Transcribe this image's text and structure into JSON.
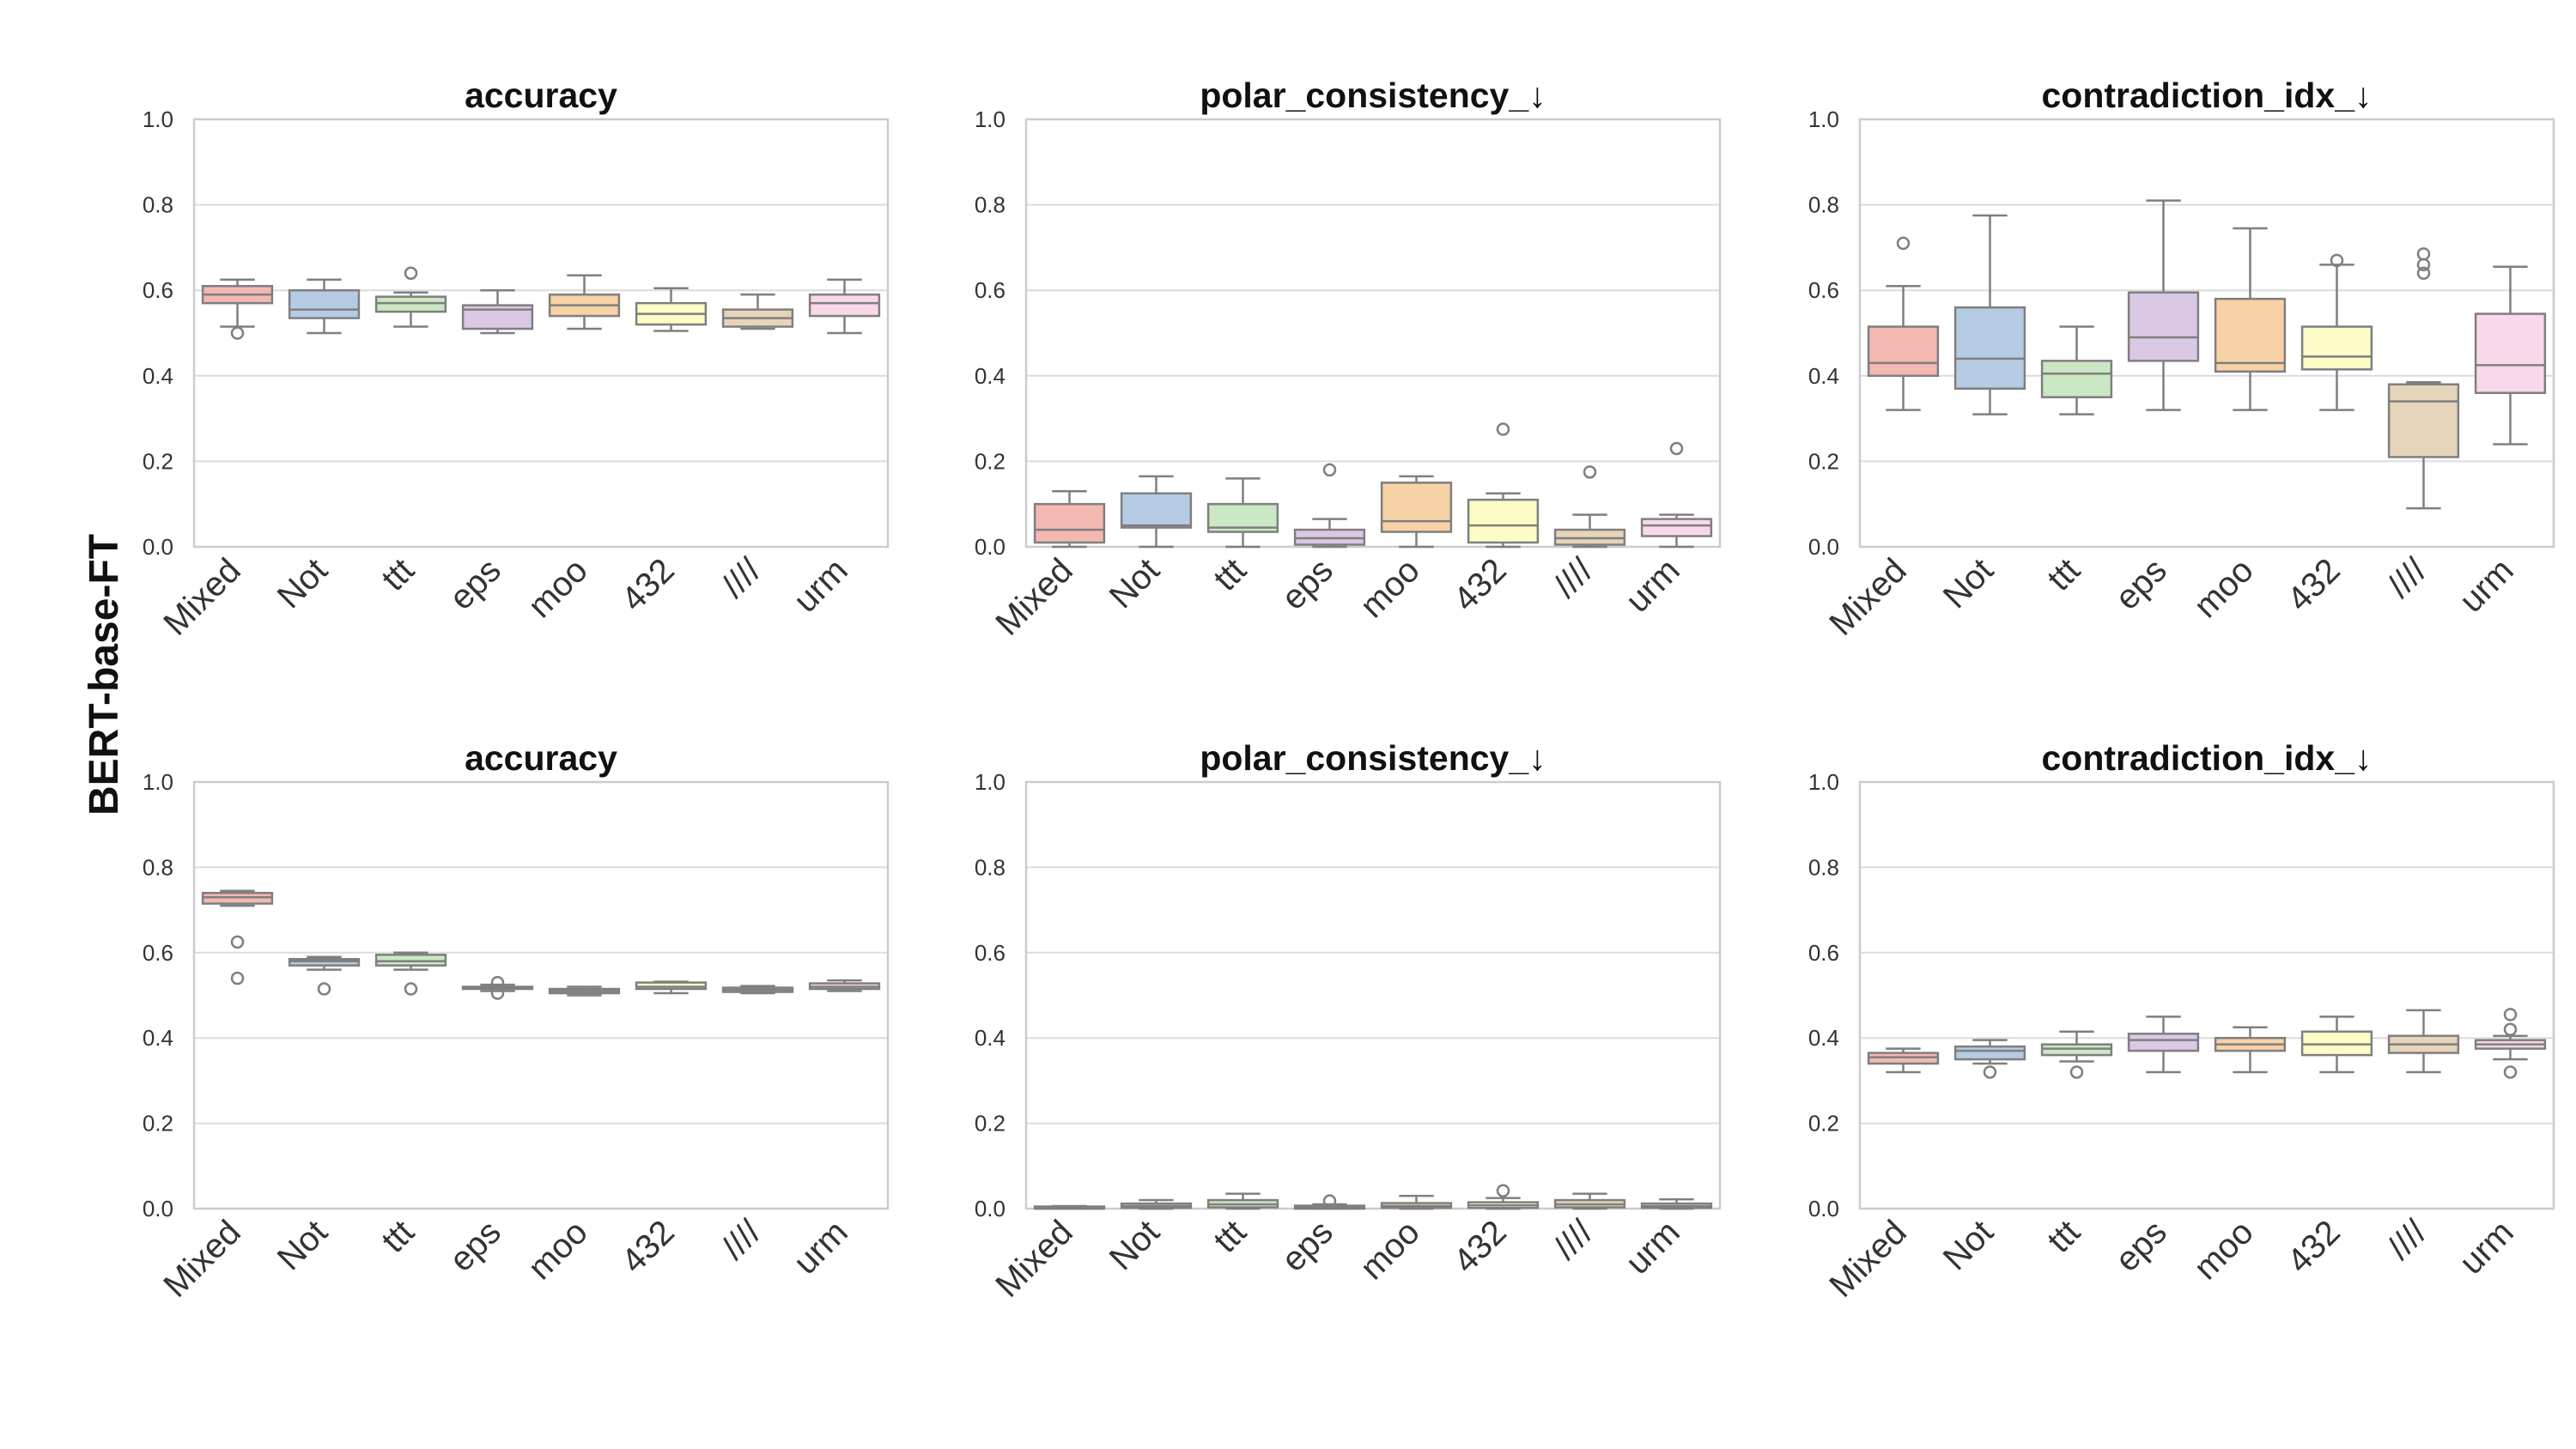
{
  "figure": {
    "row_label": "BERT-base-FT"
  },
  "chart_data": [
    {
      "type": "box",
      "title": "accuracy",
      "categories": [
        "Mixed",
        "Not",
        "ttt",
        "eps",
        "moo",
        "432",
        "////",
        "urm"
      ],
      "ylim": [
        0,
        1.0
      ],
      "yticks": [
        "0.0",
        "0.2",
        "0.4",
        "0.6",
        "0.8",
        "1.0"
      ],
      "boxes": [
        {
          "q1": 0.57,
          "median": 0.59,
          "q3": 0.61,
          "whisker_low": 0.515,
          "whisker_high": 0.625,
          "fliers": [
            0.5
          ]
        },
        {
          "q1": 0.535,
          "median": 0.555,
          "q3": 0.6,
          "whisker_low": 0.5,
          "whisker_high": 0.625,
          "fliers": []
        },
        {
          "q1": 0.55,
          "median": 0.57,
          "q3": 0.585,
          "whisker_low": 0.515,
          "whisker_high": 0.595,
          "fliers": [
            0.64
          ]
        },
        {
          "q1": 0.51,
          "median": 0.555,
          "q3": 0.565,
          "whisker_low": 0.5,
          "whisker_high": 0.6,
          "fliers": []
        },
        {
          "q1": 0.54,
          "median": 0.565,
          "q3": 0.59,
          "whisker_low": 0.51,
          "whisker_high": 0.635,
          "fliers": []
        },
        {
          "q1": 0.52,
          "median": 0.545,
          "q3": 0.57,
          "whisker_low": 0.505,
          "whisker_high": 0.605,
          "fliers": []
        },
        {
          "q1": 0.515,
          "median": 0.535,
          "q3": 0.555,
          "whisker_low": 0.51,
          "whisker_high": 0.59,
          "fliers": []
        },
        {
          "q1": 0.54,
          "median": 0.57,
          "q3": 0.59,
          "whisker_low": 0.5,
          "whisker_high": 0.625,
          "fliers": []
        }
      ]
    },
    {
      "type": "box",
      "title": "polar_consistency_↓",
      "categories": [
        "Mixed",
        "Not",
        "ttt",
        "eps",
        "moo",
        "432",
        "////",
        "urm"
      ],
      "ylim": [
        0,
        1.0
      ],
      "yticks": [
        "0.0",
        "0.2",
        "0.4",
        "0.6",
        "0.8",
        "1.0"
      ],
      "boxes": [
        {
          "q1": 0.01,
          "median": 0.04,
          "q3": 0.1,
          "whisker_low": 0.0,
          "whisker_high": 0.13,
          "fliers": []
        },
        {
          "q1": 0.045,
          "median": 0.05,
          "q3": 0.125,
          "whisker_low": 0.0,
          "whisker_high": 0.165,
          "fliers": []
        },
        {
          "q1": 0.035,
          "median": 0.045,
          "q3": 0.1,
          "whisker_low": 0.0,
          "whisker_high": 0.16,
          "fliers": []
        },
        {
          "q1": 0.005,
          "median": 0.02,
          "q3": 0.04,
          "whisker_low": 0.0,
          "whisker_high": 0.065,
          "fliers": [
            0.18
          ]
        },
        {
          "q1": 0.035,
          "median": 0.06,
          "q3": 0.15,
          "whisker_low": 0.0,
          "whisker_high": 0.165,
          "fliers": []
        },
        {
          "q1": 0.01,
          "median": 0.05,
          "q3": 0.11,
          "whisker_low": 0.0,
          "whisker_high": 0.125,
          "fliers": [
            0.275
          ]
        },
        {
          "q1": 0.005,
          "median": 0.02,
          "q3": 0.04,
          "whisker_low": 0.0,
          "whisker_high": 0.075,
          "fliers": [
            0.175
          ]
        },
        {
          "q1": 0.025,
          "median": 0.05,
          "q3": 0.065,
          "whisker_low": 0.0,
          "whisker_high": 0.075,
          "fliers": [
            0.23
          ]
        }
      ]
    },
    {
      "type": "box",
      "title": "contradiction_idx_↓",
      "categories": [
        "Mixed",
        "Not",
        "ttt",
        "eps",
        "moo",
        "432",
        "////",
        "urm"
      ],
      "ylim": [
        0,
        1.0
      ],
      "yticks": [
        "0.0",
        "0.2",
        "0.4",
        "0.6",
        "0.8",
        "1.0"
      ],
      "boxes": [
        {
          "q1": 0.4,
          "median": 0.43,
          "q3": 0.515,
          "whisker_low": 0.32,
          "whisker_high": 0.61,
          "fliers": [
            0.71
          ]
        },
        {
          "q1": 0.37,
          "median": 0.44,
          "q3": 0.56,
          "whisker_low": 0.31,
          "whisker_high": 0.775,
          "fliers": []
        },
        {
          "q1": 0.35,
          "median": 0.405,
          "q3": 0.435,
          "whisker_low": 0.31,
          "whisker_high": 0.515,
          "fliers": []
        },
        {
          "q1": 0.435,
          "median": 0.49,
          "q3": 0.595,
          "whisker_low": 0.32,
          "whisker_high": 0.81,
          "fliers": []
        },
        {
          "q1": 0.41,
          "median": 0.43,
          "q3": 0.58,
          "whisker_low": 0.32,
          "whisker_high": 0.745,
          "fliers": []
        },
        {
          "q1": 0.415,
          "median": 0.445,
          "q3": 0.515,
          "whisker_low": 0.32,
          "whisker_high": 0.66,
          "fliers": [
            0.67
          ]
        },
        {
          "q1": 0.21,
          "median": 0.34,
          "q3": 0.38,
          "whisker_low": 0.09,
          "whisker_high": 0.385,
          "fliers": [
            0.64,
            0.66,
            0.685
          ]
        },
        {
          "q1": 0.36,
          "median": 0.425,
          "q3": 0.545,
          "whisker_low": 0.24,
          "whisker_high": 0.655,
          "fliers": []
        }
      ]
    },
    {
      "type": "box",
      "title": "accuracy",
      "categories": [
        "Mixed",
        "Not",
        "ttt",
        "eps",
        "moo",
        "432",
        "////",
        "urm"
      ],
      "ylim": [
        0,
        1.0
      ],
      "yticks": [
        "0.0",
        "0.2",
        "0.4",
        "0.6",
        "0.8",
        "1.0"
      ],
      "boxes": [
        {
          "q1": 0.715,
          "median": 0.73,
          "q3": 0.74,
          "whisker_low": 0.71,
          "whisker_high": 0.745,
          "fliers": [
            0.625,
            0.54
          ]
        },
        {
          "q1": 0.57,
          "median": 0.58,
          "q3": 0.585,
          "whisker_low": 0.56,
          "whisker_high": 0.59,
          "fliers": [
            0.515
          ]
        },
        {
          "q1": 0.57,
          "median": 0.58,
          "q3": 0.595,
          "whisker_low": 0.56,
          "whisker_high": 0.6,
          "fliers": [
            0.515
          ]
        },
        {
          "q1": 0.515,
          "median": 0.518,
          "q3": 0.52,
          "whisker_low": 0.51,
          "whisker_high": 0.525,
          "fliers": [
            0.53,
            0.505
          ]
        },
        {
          "q1": 0.505,
          "median": 0.51,
          "q3": 0.515,
          "whisker_low": 0.5,
          "whisker_high": 0.52,
          "fliers": []
        },
        {
          "q1": 0.515,
          "median": 0.52,
          "q3": 0.53,
          "whisker_low": 0.505,
          "whisker_high": 0.532,
          "fliers": []
        },
        {
          "q1": 0.508,
          "median": 0.513,
          "q3": 0.518,
          "whisker_low": 0.505,
          "whisker_high": 0.522,
          "fliers": []
        },
        {
          "q1": 0.515,
          "median": 0.52,
          "q3": 0.528,
          "whisker_low": 0.51,
          "whisker_high": 0.535,
          "fliers": []
        }
      ]
    },
    {
      "type": "box",
      "title": "polar_consistency_↓",
      "categories": [
        "Mixed",
        "Not",
        "ttt",
        "eps",
        "moo",
        "432",
        "////",
        "urm"
      ],
      "ylim": [
        0,
        1.0
      ],
      "yticks": [
        "0.0",
        "0.2",
        "0.4",
        "0.6",
        "0.8",
        "1.0"
      ],
      "boxes": [
        {
          "q1": 0.0,
          "median": 0.002,
          "q3": 0.005,
          "whisker_low": 0.0,
          "whisker_high": 0.006,
          "fliers": []
        },
        {
          "q1": 0.002,
          "median": 0.006,
          "q3": 0.012,
          "whisker_low": 0.0,
          "whisker_high": 0.02,
          "fliers": []
        },
        {
          "q1": 0.003,
          "median": 0.01,
          "q3": 0.02,
          "whisker_low": 0.0,
          "whisker_high": 0.035,
          "fliers": []
        },
        {
          "q1": 0.0,
          "median": 0.003,
          "q3": 0.007,
          "whisker_low": 0.0,
          "whisker_high": 0.01,
          "fliers": [
            0.018
          ]
        },
        {
          "q1": 0.002,
          "median": 0.006,
          "q3": 0.013,
          "whisker_low": 0.0,
          "whisker_high": 0.03,
          "fliers": []
        },
        {
          "q1": 0.002,
          "median": 0.008,
          "q3": 0.015,
          "whisker_low": 0.0,
          "whisker_high": 0.025,
          "fliers": [
            0.042
          ]
        },
        {
          "q1": 0.003,
          "median": 0.01,
          "q3": 0.02,
          "whisker_low": 0.0,
          "whisker_high": 0.035,
          "fliers": []
        },
        {
          "q1": 0.002,
          "median": 0.006,
          "q3": 0.012,
          "whisker_low": 0.0,
          "whisker_high": 0.022,
          "fliers": []
        }
      ]
    },
    {
      "type": "box",
      "title": "contradiction_idx_↓",
      "categories": [
        "Mixed",
        "Not",
        "ttt",
        "eps",
        "moo",
        "432",
        "////",
        "urm"
      ],
      "ylim": [
        0,
        1.0
      ],
      "yticks": [
        "0.0",
        "0.2",
        "0.4",
        "0.6",
        "0.8",
        "1.0"
      ],
      "boxes": [
        {
          "q1": 0.34,
          "median": 0.355,
          "q3": 0.365,
          "whisker_low": 0.32,
          "whisker_high": 0.375,
          "fliers": []
        },
        {
          "q1": 0.35,
          "median": 0.37,
          "q3": 0.38,
          "whisker_low": 0.34,
          "whisker_high": 0.395,
          "fliers": [
            0.32
          ]
        },
        {
          "q1": 0.36,
          "median": 0.375,
          "q3": 0.385,
          "whisker_low": 0.345,
          "whisker_high": 0.415,
          "fliers": [
            0.32
          ]
        },
        {
          "q1": 0.37,
          "median": 0.395,
          "q3": 0.41,
          "whisker_low": 0.32,
          "whisker_high": 0.45,
          "fliers": []
        },
        {
          "q1": 0.37,
          "median": 0.385,
          "q3": 0.4,
          "whisker_low": 0.32,
          "whisker_high": 0.425,
          "fliers": []
        },
        {
          "q1": 0.36,
          "median": 0.385,
          "q3": 0.415,
          "whisker_low": 0.32,
          "whisker_high": 0.45,
          "fliers": []
        },
        {
          "q1": 0.365,
          "median": 0.385,
          "q3": 0.405,
          "whisker_low": 0.32,
          "whisker_high": 0.465,
          "fliers": []
        },
        {
          "q1": 0.375,
          "median": 0.385,
          "q3": 0.395,
          "whisker_low": 0.35,
          "whisker_high": 0.405,
          "fliers": [
            0.455,
            0.42,
            0.32
          ]
        }
      ]
    }
  ],
  "palette": [
    "#f4b8b3",
    "#b5cbe3",
    "#cbe8c4",
    "#dbc8e4",
    "#f7d2a4",
    "#fdfcc6",
    "#e6d4bb",
    "#f8d8e9"
  ]
}
